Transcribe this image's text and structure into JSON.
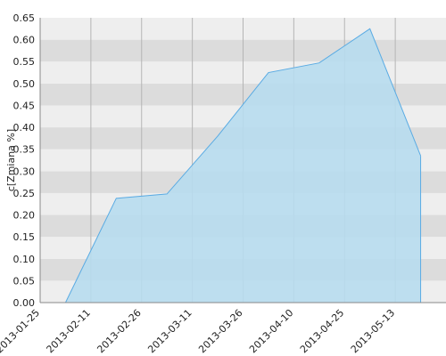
{
  "chart_data": {
    "type": "area",
    "y_label": "c[Zmiana %]",
    "categories": [
      "2013-01-25",
      "2013-02-11",
      "2013-02-26",
      "2013-03-11",
      "2013-03-26",
      "2013-04-10",
      "2013-04-25",
      "2013-05-13"
    ],
    "values": [
      0,
      0.238,
      0.248,
      0.38,
      0.525,
      0.547,
      0.625,
      0.335
    ],
    "color": "#5aabe3",
    "fill": "#b7dcee",
    "ylim": [
      0,
      0.65
    ],
    "yticks": [
      {
        "value": 0,
        "label": "0.00"
      },
      0.05,
      {
        "value": 0.1,
        "label": "0.10"
      },
      0.15,
      {
        "value": 0.2,
        "label": "0.20"
      },
      0.25,
      {
        "value": 0.3,
        "label": "0.30"
      },
      0.35,
      {
        "value": 0.4,
        "label": "0.40"
      },
      0.45,
      {
        "value": 0.5,
        "label": "0.50"
      },
      0.55,
      {
        "value": 0.6,
        "label": "0.60"
      },
      0.65
    ],
    "grid": true
  }
}
